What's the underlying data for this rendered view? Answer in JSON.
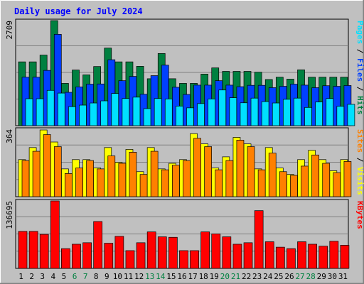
{
  "chart_data": {
    "type": "bar",
    "title": "Daily usage for July 2024",
    "categories": [
      "1",
      "2",
      "3",
      "4",
      "5",
      "6",
      "7",
      "8",
      "9",
      "10",
      "11",
      "12",
      "13",
      "14",
      "15",
      "16",
      "17",
      "18",
      "19",
      "20",
      "21",
      "22",
      "23",
      "24",
      "25",
      "26",
      "27",
      "28",
      "29",
      "30",
      "31"
    ],
    "weekend_days": [
      "6",
      "7",
      "13",
      "14",
      "20",
      "21",
      "27",
      "28"
    ],
    "panels": [
      {
        "name": "hits-files-pages",
        "ymax_label": "2709",
        "ylim": [
          0,
          2709
        ],
        "legend": [
          "Pages",
          "Files",
          "Hits"
        ],
        "series": [
          {
            "name": "Hits",
            "color": "#008040",
            "values": [
              1645,
              1645,
              1820,
              2709,
              1090,
              1435,
              1310,
              1525,
              2000,
              1645,
              1645,
              1530,
              1210,
              1860,
              1210,
              1090,
              1090,
              1330,
              1490,
              1400,
              1400,
              1400,
              1380,
              1190,
              1250,
              1200,
              1440,
              1250,
              1250,
              1250,
              1250
            ]
          },
          {
            "name": "Files",
            "color": "#0040ff",
            "values": [
              1250,
              1250,
              1425,
              2355,
              860,
              1000,
              1070,
              1075,
              1700,
              1160,
              1270,
              810,
              1290,
              1560,
              990,
              805,
              1045,
              1045,
              1160,
              1045,
              1005,
              1040,
              1040,
              980,
              1015,
              1070,
              1045,
              980,
              1030,
              1015,
              1035
            ]
          },
          {
            "name": "Pages",
            "color": "#00e0ff",
            "values": [
              695,
              695,
              910,
              840,
              490,
              530,
              585,
              640,
              830,
              700,
              735,
              440,
              700,
              690,
              505,
              460,
              570,
              690,
              920,
              720,
              590,
              710,
              620,
              585,
              680,
              710,
              470,
              610,
              700,
              500,
              550
            ]
          }
        ]
      },
      {
        "name": "visits-sites",
        "ymax_label": "364",
        "ylim": [
          0,
          364
        ],
        "legend": [
          "Sites",
          "Visits"
        ],
        "series": [
          {
            "name": "Visits",
            "color": "#ffff00",
            "values": [
              200,
              265,
              360,
              295,
              150,
              200,
              200,
              155,
              265,
              185,
              255,
              135,
              265,
              150,
              180,
              200,
              340,
              285,
              155,
              215,
              320,
              285,
              150,
              265,
              155,
              120,
              200,
              250,
              200,
              140,
              200
            ]
          },
          {
            "name": "Sites",
            "color": "#ff8000",
            "values": [
              195,
              245,
              335,
              270,
              125,
              155,
              195,
              150,
              220,
              180,
              240,
              120,
              245,
              145,
              170,
              195,
              315,
              270,
              145,
              195,
              305,
              270,
              145,
              235,
              135,
              115,
              165,
              225,
              180,
              130,
              190
            ]
          }
        ]
      },
      {
        "name": "kbytes",
        "ymax_label": "136695",
        "ylim": [
          0,
          136695
        ],
        "legend": [
          "KBytes"
        ],
        "series": [
          {
            "name": "KBytes",
            "color": "#ff0000",
            "values": [
              75000,
              75000,
              69000,
              136695,
              40000,
              49000,
              52000,
              95000,
              51000,
              65000,
              36000,
              52000,
              74000,
              64000,
              63000,
              36000,
              36000,
              74000,
              70000,
              64000,
              49000,
              52000,
              117000,
              54000,
              43000,
              40000,
              54000,
              49000,
              45000,
              55000,
              47000
            ]
          }
        ]
      }
    ]
  }
}
